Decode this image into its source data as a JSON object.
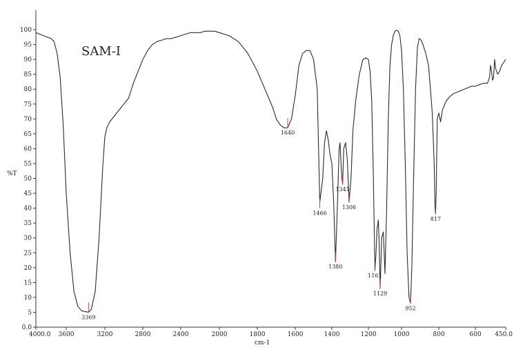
{
  "chart_data": {
    "type": "line",
    "title": "SAM-I",
    "xlabel": "cm-1",
    "ylabel": "%T",
    "xlim": [
      4000.0,
      450.0
    ],
    "ylim": [
      0.0,
      100.0
    ],
    "x_reversed": true,
    "grid": false,
    "legend": "none",
    "line_color": "#2a2a2a",
    "peak_marker_color": "#d04040",
    "x_ticks": [
      {
        "value": 4000,
        "label": "4000.0"
      },
      {
        "value": 3600,
        "label": "3600"
      },
      {
        "value": 3200,
        "label": "3200"
      },
      {
        "value": 2800,
        "label": "2800"
      },
      {
        "value": 2400,
        "label": "2400"
      },
      {
        "value": 2000,
        "label": "2000"
      },
      {
        "value": 1800,
        "label": "1800"
      },
      {
        "value": 1600,
        "label": "1600"
      },
      {
        "value": 1400,
        "label": "1400"
      },
      {
        "value": 1200,
        "label": "1200"
      },
      {
        "value": 1000,
        "label": "1000"
      },
      {
        "value": 800,
        "label": "800"
      },
      {
        "value": 600,
        "label": "600"
      },
      {
        "value": 450,
        "label": "450.0"
      }
    ],
    "y_ticks": [
      "0.0",
      "5",
      "10",
      "15",
      "20",
      "25",
      "30",
      "35",
      "40",
      "45",
      "50",
      "55",
      "60",
      "65",
      "70",
      "75",
      "80",
      "85",
      "90",
      "95",
      "100"
    ],
    "peaks": [
      {
        "x": 3369,
        "y": 5.0,
        "label": "3369"
      },
      {
        "x": 1640,
        "y": 67.0,
        "label": "1640"
      },
      {
        "x": 1466,
        "y": 40.0,
        "label": "1466"
      },
      {
        "x": 1380,
        "y": 22.0,
        "label": "1380"
      },
      {
        "x": 1341,
        "y": 48.0,
        "label": "1341"
      },
      {
        "x": 1306,
        "y": 42.0,
        "label": "1306"
      },
      {
        "x": 1161,
        "y": 19.0,
        "label": "1161"
      },
      {
        "x": 1129,
        "y": 13.0,
        "label": "1129"
      },
      {
        "x": 952,
        "y": 8.0,
        "label": "952"
      },
      {
        "x": 817,
        "y": 38.0,
        "label": "817"
      }
    ],
    "series": [
      {
        "x": [
          4000,
          3950,
          3900,
          3850,
          3800,
          3760,
          3720,
          3680,
          3640,
          3600,
          3560,
          3520,
          3480,
          3440,
          3400,
          3369,
          3340,
          3300,
          3260,
          3220,
          3200,
          3180,
          3150,
          3100,
          3050,
          3000,
          2950,
          2900,
          2850,
          2800,
          2750,
          2700,
          2650,
          2600,
          2550,
          2500,
          2450,
          2400,
          2350,
          2300,
          2250,
          2200,
          2150,
          2100,
          2050,
          2000,
          1950,
          1900,
          1850,
          1800,
          1760,
          1720,
          1700,
          1680,
          1660,
          1640,
          1620,
          1600,
          1580,
          1560,
          1540,
          1520,
          1500,
          1480,
          1466,
          1450,
          1440,
          1430,
          1420,
          1410,
          1400,
          1390,
          1380,
          1370,
          1360,
          1355,
          1350,
          1345,
          1341,
          1335,
          1325,
          1315,
          1306,
          1295,
          1285,
          1270,
          1250,
          1230,
          1215,
          1200,
          1190,
          1180,
          1170,
          1161,
          1155,
          1148,
          1140,
          1135,
          1129,
          1120,
          1110,
          1100,
          1090,
          1080,
          1070,
          1060,
          1050,
          1040,
          1030,
          1020,
          1010,
          1000,
          990,
          980,
          970,
          960,
          952,
          945,
          935,
          925,
          915,
          905,
          895,
          885,
          870,
          855,
          845,
          835,
          825,
          820,
          817,
          814,
          808,
          800,
          790,
          780,
          760,
          740,
          720,
          700,
          680,
          660,
          640,
          620,
          600,
          580,
          560,
          540,
          530,
          525,
          520,
          515,
          510,
          505,
          500,
          490,
          480,
          470,
          460,
          450
        ],
        "y": [
          99,
          98.5,
          98,
          97.5,
          97,
          96,
          92,
          84,
          68,
          45,
          25,
          12,
          7,
          5.5,
          5.2,
          5,
          6,
          12,
          30,
          55,
          64,
          67,
          69,
          71,
          73,
          75,
          77,
          82,
          86,
          90,
          93,
          95,
          96,
          96.5,
          97,
          97,
          97.5,
          98,
          98.5,
          99,
          99,
          99,
          99.5,
          99.5,
          99.5,
          99,
          98,
          96,
          92,
          86,
          80,
          74,
          70,
          68,
          67,
          67,
          70,
          78,
          88,
          92,
          93,
          93,
          90,
          80,
          42,
          50,
          62,
          66,
          63,
          58,
          55,
          42,
          22,
          40,
          60,
          62,
          55,
          50,
          48,
          60,
          62,
          56,
          42,
          50,
          66,
          76,
          85,
          90,
          90.5,
          90,
          86,
          76,
          50,
          19,
          24,
          33,
          36,
          28,
          13,
          30,
          32,
          18,
          40,
          70,
          88,
          95,
          98,
          99.5,
          99.8,
          99.5,
          98,
          93,
          80,
          55,
          25,
          10,
          8,
          20,
          50,
          80,
          94,
          97,
          96.5,
          95,
          92,
          88,
          80,
          72,
          55,
          40,
          38,
          45,
          70,
          72,
          69,
          73,
          76,
          77.5,
          78.5,
          79,
          79.5,
          80,
          80.5,
          81,
          81,
          81.5,
          82,
          82,
          84,
          88,
          86,
          83,
          84,
          90,
          87,
          85,
          86,
          88,
          89,
          90
        ]
      }
    ]
  }
}
